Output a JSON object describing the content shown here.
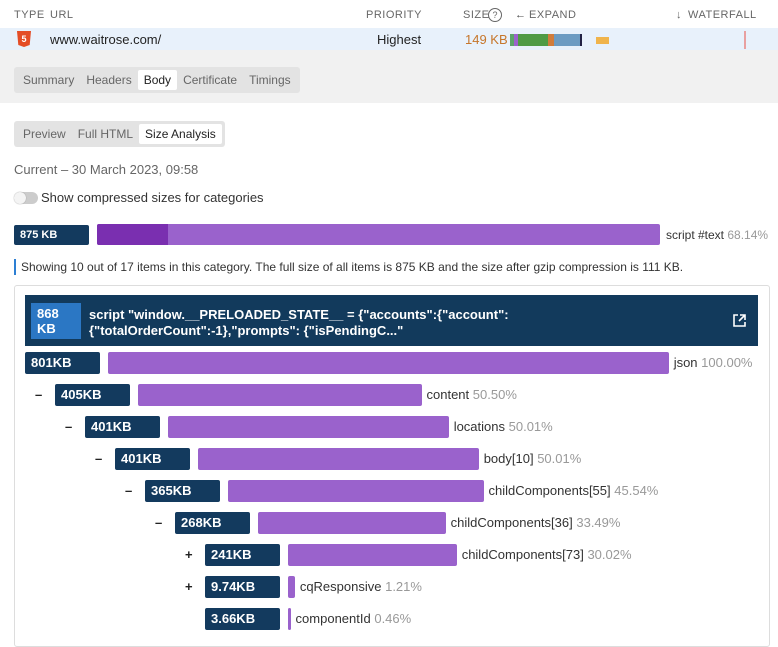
{
  "header": {
    "type": "TYPE",
    "url": "URL",
    "priority": "PRIORITY",
    "size": "SIZE",
    "expand": "EXPAND",
    "waterfall": "WATERFALL"
  },
  "request": {
    "url": "www.waitrose.com/",
    "priority": "Highest",
    "size": "149 KB"
  },
  "tabs": [
    "Summary",
    "Headers",
    "Body",
    "Certificate",
    "Timings"
  ],
  "subtabs": [
    "Preview",
    "Full HTML",
    "Size Analysis"
  ],
  "date": "Current – 30 March 2023, 09:58",
  "toggle_label": "Show compressed sizes for categories",
  "category": {
    "size": "875 KB",
    "name": "script #text",
    "share": "68.14%"
  },
  "info": "Showing 10 out of 17 items in this category. The full size of all items is 875 KB and the size after gzip compression is 111 KB.",
  "item": {
    "size": "868 KB",
    "title": "script \"window.__PRELOADED_STATE__ = {\"accounts\":{\"account\":{\"totalOrderCount\":-1},\"prompts\": {\"isPendingC...\"",
    "tree": {
      "size": {
        "value": 801,
        "label": "801KB"
      },
      "name": "json",
      "share": "100.00%",
      "children": [
        {
          "toggle": "–",
          "size": {
            "value": 405,
            "label": "405KB"
          },
          "name": "content",
          "share": "50.50%",
          "children": [
            {
              "toggle": "–",
              "size": {
                "value": 401,
                "label": "401KB"
              },
              "name": "locations",
              "share": "50.01%",
              "children": [
                {
                  "toggle": "–",
                  "size": {
                    "value": 401,
                    "label": "401KB"
                  },
                  "name": "body[10]",
                  "share": "50.01%",
                  "children": [
                    {
                      "toggle": "–",
                      "size": {
                        "value": 365,
                        "label": "365KB"
                      },
                      "name": "childComponents[55]",
                      "share": "45.54%",
                      "children": [
                        {
                          "toggle": "–",
                          "size": {
                            "value": 268,
                            "label": "268KB"
                          },
                          "name": "childComponents[36]",
                          "share": "33.49%",
                          "children": [
                            {
                              "toggle": "+",
                              "size": {
                                "value": 241,
                                "label": "241KB"
                              },
                              "name": "childComponents[73]",
                              "share": "30.02%"
                            },
                            {
                              "toggle": "+",
                              "size": {
                                "value": 9.74,
                                "label": "9.74KB"
                              },
                              "name": "cqResponsive",
                              "share": "1.21%"
                            },
                            {
                              "size": {
                                "value": 3.66,
                                "label": "3.66KB"
                              },
                              "name": "componentId",
                              "share": "0.46%"
                            }
                          ]
                        }
                      ]
                    }
                  ]
                }
              ]
            }
          ]
        }
      ]
    }
  }
}
